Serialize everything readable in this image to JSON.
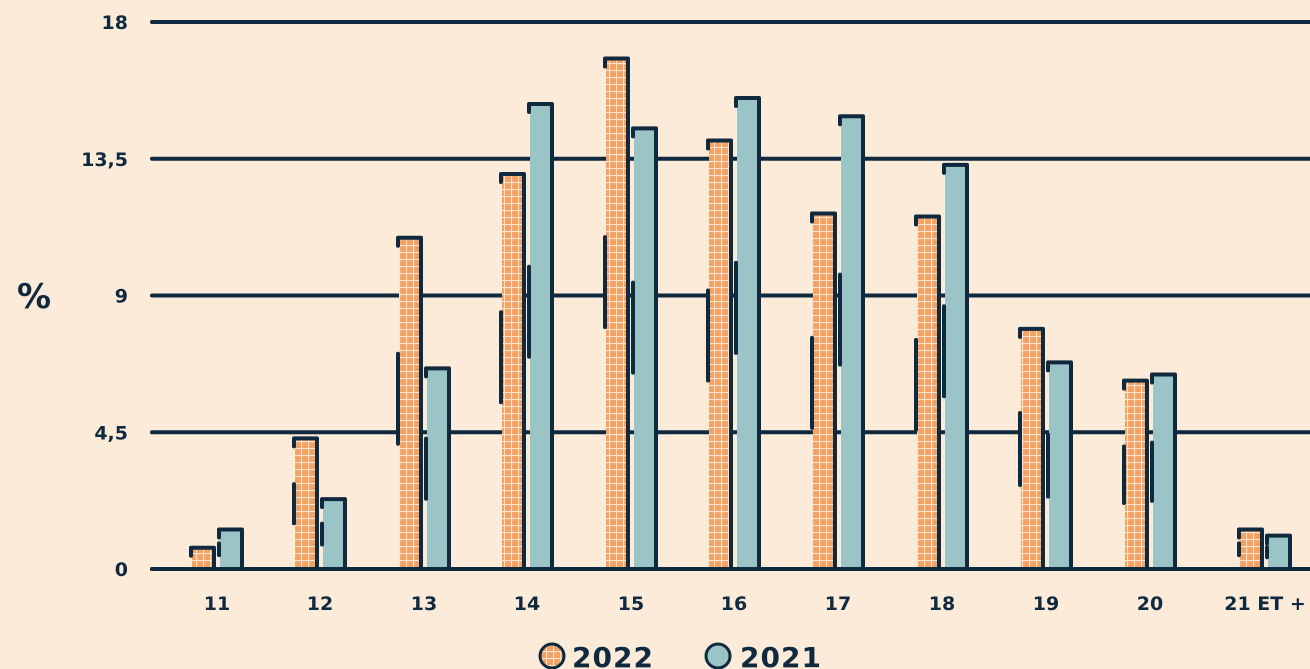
{
  "chart_data": {
    "type": "bar",
    "ylabel": "%",
    "xlabel": "",
    "ylim": [
      0,
      18
    ],
    "y_ticks": [
      "0",
      "4,5",
      "9",
      "13,5",
      "18"
    ],
    "y_tick_values": [
      0,
      4.5,
      9,
      13.5,
      18
    ],
    "categories": [
      "11",
      "12",
      "13",
      "14",
      "15",
      "16",
      "17",
      "18",
      "19",
      "20",
      "21 ET +"
    ],
    "series": [
      {
        "name": "2022",
        "color": "#f4a263",
        "pattern": "checkered",
        "values": [
          0.7,
          4.3,
          10.9,
          13.0,
          16.8,
          14.1,
          11.7,
          11.6,
          7.9,
          6.2,
          1.3
        ]
      },
      {
        "name": "2021",
        "color": "#9bc4c6",
        "pattern": "solid",
        "values": [
          1.3,
          2.3,
          6.6,
          15.3,
          14.5,
          15.5,
          14.9,
          13.3,
          6.8,
          6.4,
          1.1
        ]
      }
    ],
    "grid": true,
    "legend_position": "bottom-center",
    "outline_color": "#0f2a3f"
  }
}
